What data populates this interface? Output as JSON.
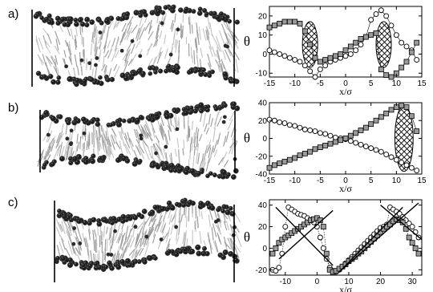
{
  "panel_labels": [
    "a)",
    "b)",
    "c)"
  ],
  "chart_data": [
    {
      "type": "scatter",
      "xlabel": "x/σ",
      "ylabel": "θ",
      "xlim": [
        -15,
        15
      ],
      "ylim": [
        -12,
        25
      ],
      "xticks": [
        "-15",
        "-10",
        "-5",
        "0",
        "5",
        "10",
        "15"
      ],
      "yticks": [
        "-10",
        "0",
        "10",
        "20"
      ],
      "series": [
        {
          "marker": "circle",
          "x": [
            -15,
            -14,
            -13,
            -12,
            -11,
            -10,
            -9,
            -8,
            -7,
            -6,
            -5,
            -4,
            -3,
            -2,
            -1,
            0,
            1,
            2,
            3,
            4,
            5,
            6,
            7,
            8,
            9,
            10,
            11,
            12,
            13,
            14
          ],
          "y": [
            2,
            1,
            0,
            -1,
            -2,
            -3,
            -4,
            -6,
            -9,
            -12,
            -8,
            -6,
            -4,
            -3,
            -2,
            -1,
            0,
            2,
            5,
            9,
            18,
            21,
            23,
            20,
            15,
            10,
            6,
            4,
            2,
            -3
          ]
        },
        {
          "marker": "square",
          "x": [
            -15,
            -14,
            -13,
            -12,
            -11,
            -10,
            -9,
            -8,
            -7,
            -6,
            -5,
            -4,
            -3,
            -2,
            -1,
            0,
            1,
            2,
            3,
            4,
            5,
            6,
            7,
            8,
            9,
            10,
            11,
            12,
            13,
            14
          ],
          "y": [
            14,
            15,
            16,
            17,
            17,
            17,
            16,
            12,
            5,
            -2,
            -4,
            -3,
            -2,
            -1,
            0,
            2,
            4,
            6,
            8,
            9,
            10,
            11,
            -8,
            -11,
            -12,
            -10,
            -7,
            -4,
            1,
            6
          ]
        }
      ],
      "regions": [
        {
          "cx": -7,
          "cy": 5,
          "rx": 1.5,
          "ry": 12
        },
        {
          "cx": 7.5,
          "cy": 5,
          "rx": 1.5,
          "ry": 12
        }
      ]
    },
    {
      "type": "scatter",
      "xlabel": "x/σ",
      "ylabel": "θ",
      "xlim": [
        -15,
        15
      ],
      "ylim": [
        -40,
        40
      ],
      "xticks": [
        "-15",
        "-10",
        "-5",
        "0",
        "5",
        "10",
        "15"
      ],
      "yticks": [
        "-40",
        "-20",
        "0",
        "20",
        "40"
      ],
      "series": [
        {
          "marker": "circle",
          "x": [
            -15,
            -14,
            -13,
            -12,
            -11,
            -10,
            -9,
            -8,
            -7,
            -6,
            -5,
            -4,
            -3,
            -2,
            -1,
            0,
            1,
            2,
            3,
            4,
            5,
            6,
            7,
            8,
            9,
            10,
            11,
            12,
            13,
            14
          ],
          "y": [
            21,
            20,
            18,
            17,
            15,
            14,
            12,
            10,
            9,
            8,
            6,
            5,
            3,
            1,
            0,
            -1,
            -3,
            -5,
            -7,
            -9,
            -11,
            -13,
            -15,
            -18,
            -21,
            -24,
            -27,
            -30,
            -33,
            -36
          ]
        },
        {
          "marker": "square",
          "x": [
            -15,
            -14,
            -13,
            -12,
            -11,
            -10,
            -9,
            -8,
            -7,
            -6,
            -5,
            -4,
            -3,
            -2,
            -1,
            0,
            1,
            2,
            3,
            4,
            5,
            6,
            7,
            8,
            9,
            10,
            11,
            12,
            13,
            14
          ],
          "y": [
            -33,
            -30,
            -28,
            -26,
            -24,
            -22,
            -19,
            -17,
            -15,
            -12,
            -10,
            -8,
            -6,
            -4,
            -2,
            0,
            3,
            6,
            9,
            12,
            16,
            20,
            24,
            28,
            32,
            35,
            37,
            35,
            25,
            8
          ]
        }
      ],
      "regions": [
        {
          "cx": 11.5,
          "cy": 0,
          "rx": 1.8,
          "ry": 37
        }
      ]
    },
    {
      "type": "scatter",
      "xlabel": "x/σ",
      "ylabel": "θ",
      "xlim": [
        -15,
        33
      ],
      "ylim": [
        -25,
        45
      ],
      "xticks": [
        "-10",
        "0",
        "10",
        "20",
        "30"
      ],
      "yticks": [
        "-20",
        "0",
        "20",
        "40"
      ],
      "series": [
        {
          "marker": "circle",
          "x": [
            -14,
            -13,
            -12,
            -11,
            -10,
            -9,
            -8,
            -7,
            -6,
            -5,
            -4,
            -3,
            -2,
            -1,
            0,
            1,
            2,
            3,
            4,
            5,
            6,
            7,
            8,
            9,
            10,
            11,
            12,
            13,
            14,
            15,
            16,
            17,
            18,
            19,
            20,
            21,
            22,
            23,
            24,
            25,
            26,
            27,
            28,
            29,
            30,
            31,
            32
          ],
          "y": [
            -20,
            -21,
            -18,
            -5,
            20,
            38,
            36,
            34,
            32,
            31,
            30,
            28,
            26,
            24,
            20,
            10,
            0,
            -10,
            -18,
            -21,
            -22,
            -20,
            -17,
            -14,
            -11,
            -8,
            -5,
            -2,
            1,
            4,
            7,
            10,
            13,
            16,
            19,
            20,
            22,
            38,
            36,
            34,
            32,
            29,
            26,
            23,
            20,
            15,
            10
          ]
        },
        {
          "marker": "square",
          "x": [
            -14,
            -13,
            -12,
            -11,
            -10,
            -9,
            -8,
            -7,
            -6,
            -5,
            -4,
            -3,
            -2,
            -1,
            0,
            1,
            2,
            3,
            4,
            5,
            6,
            7,
            8,
            9,
            10,
            11,
            12,
            13,
            14,
            15,
            16,
            17,
            18,
            19,
            20,
            21,
            22,
            23,
            24,
            25,
            26,
            27,
            28,
            29,
            30,
            31,
            32
          ],
          "y": [
            -5,
            0,
            5,
            8,
            10,
            12,
            14,
            16,
            18,
            20,
            22,
            24,
            26,
            27,
            28,
            26,
            20,
            -5,
            -20,
            -22,
            -21,
            -19,
            -17,
            -15,
            -12,
            -10,
            -8,
            -5,
            -3,
            0,
            3,
            6,
            9,
            12,
            15,
            18,
            20,
            22,
            25,
            27,
            26,
            24,
            18,
            10,
            5,
            0,
            -5
          ]
        }
      ],
      "fit_lines": [
        {
          "x": [
            -12,
            5
          ],
          "y": [
            -10,
            35
          ]
        },
        {
          "x": [
            -13,
            5
          ],
          "y": [
            38,
            -16
          ]
        },
        {
          "x": [
            7,
            27
          ],
          "y": [
            -22,
            38
          ]
        },
        {
          "x": [
            7,
            32
          ],
          "y": [
            -22,
            42
          ]
        },
        {
          "x": [
            20,
            33
          ],
          "y": [
            40,
            8
          ]
        }
      ]
    }
  ]
}
